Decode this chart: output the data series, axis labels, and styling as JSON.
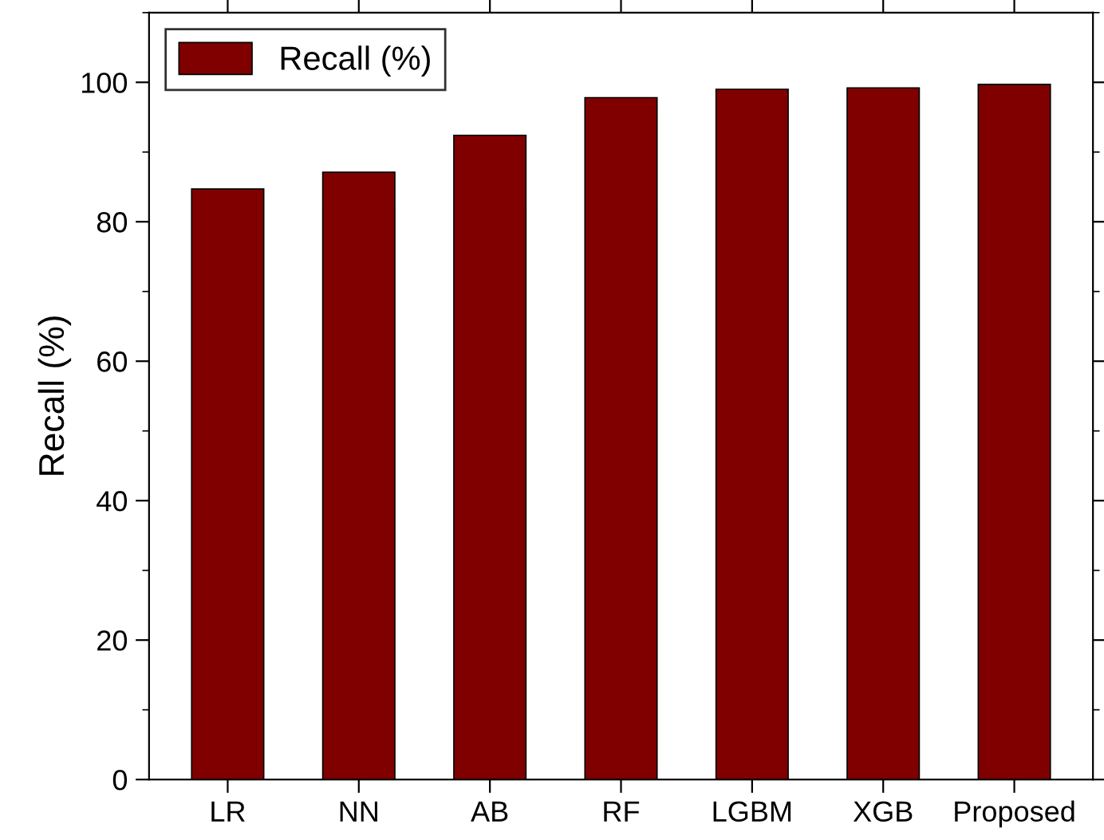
{
  "chart_data": {
    "type": "bar",
    "ylabel": "Recall (%)",
    "categories": [
      "LR",
      "NN",
      "AB",
      "RF",
      "LGBM",
      "XGB",
      "Proposed"
    ],
    "series": [
      {
        "name": "Recall (%)",
        "color": "#800000",
        "values": [
          84.7,
          87.1,
          92.4,
          97.8,
          99.0,
          99.2,
          99.7
        ]
      }
    ],
    "ylim": [
      0,
      110
    ],
    "yticks": [
      0,
      20,
      40,
      60,
      80,
      100
    ],
    "grid": false,
    "legend": "top left"
  }
}
